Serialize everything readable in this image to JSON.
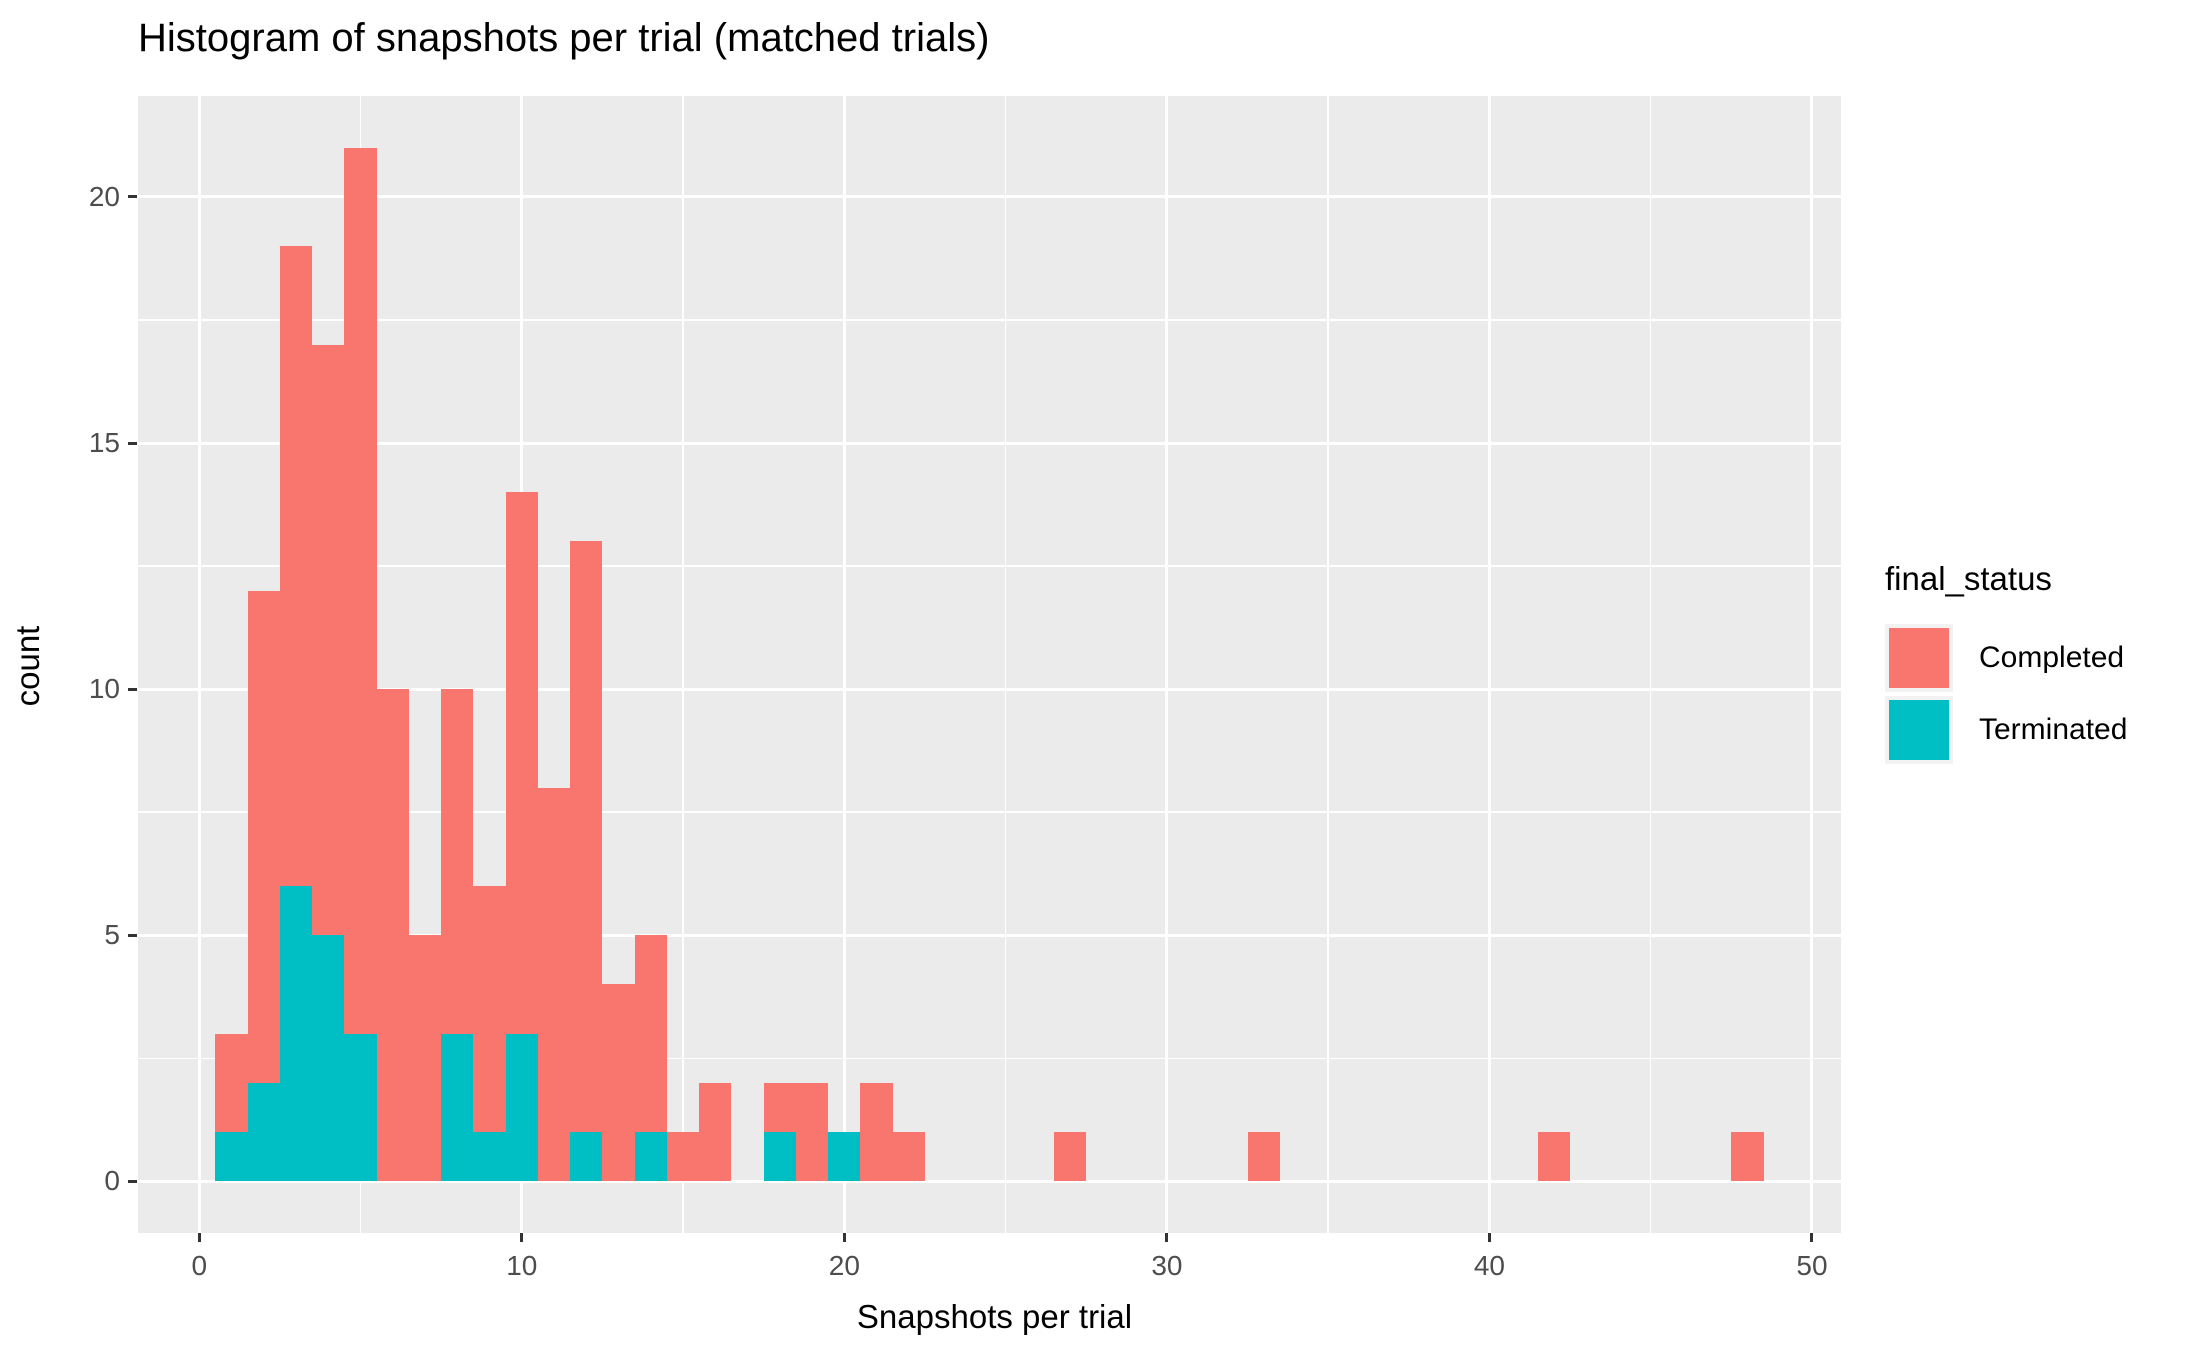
{
  "chart_data": {
    "type": "bar",
    "subtype": "stacked-histogram",
    "title": "Histogram of snapshots per trial (matched trials)",
    "xlabel": "Snapshots per trial",
    "ylabel": "count",
    "legend_title": "final_status",
    "legend_position": "right",
    "binwidth": 1,
    "xlim": [
      -1.9,
      50.9
    ],
    "ylim": [
      -1.05,
      22.05
    ],
    "x_ticks": [
      0,
      10,
      20,
      30,
      40,
      50
    ],
    "y_ticks": [
      0,
      5,
      10,
      15,
      20
    ],
    "x_minor": [
      5,
      15,
      25,
      35,
      45
    ],
    "y_minor": [
      2.5,
      7.5,
      12.5,
      17.5
    ],
    "grid": "on",
    "series": [
      {
        "name": "Completed",
        "color": "#F8766D"
      },
      {
        "name": "Terminated",
        "color": "#00BFC4"
      }
    ],
    "bins": [
      {
        "x": 1,
        "completed": 2,
        "terminated": 1
      },
      {
        "x": 2,
        "completed": 10,
        "terminated": 2
      },
      {
        "x": 3,
        "completed": 13,
        "terminated": 6
      },
      {
        "x": 4,
        "completed": 12,
        "terminated": 5
      },
      {
        "x": 5,
        "completed": 18,
        "terminated": 3
      },
      {
        "x": 6,
        "completed": 10,
        "terminated": 0
      },
      {
        "x": 7,
        "completed": 5,
        "terminated": 0
      },
      {
        "x": 8,
        "completed": 7,
        "terminated": 3
      },
      {
        "x": 9,
        "completed": 5,
        "terminated": 1
      },
      {
        "x": 10,
        "completed": 11,
        "terminated": 3
      },
      {
        "x": 11,
        "completed": 8,
        "terminated": 0
      },
      {
        "x": 12,
        "completed": 12,
        "terminated": 1
      },
      {
        "x": 13,
        "completed": 4,
        "terminated": 0
      },
      {
        "x": 14,
        "completed": 4,
        "terminated": 1
      },
      {
        "x": 15,
        "completed": 1,
        "terminated": 0
      },
      {
        "x": 16,
        "completed": 2,
        "terminated": 0
      },
      {
        "x": 18,
        "completed": 1,
        "terminated": 1
      },
      {
        "x": 19,
        "completed": 2,
        "terminated": 0
      },
      {
        "x": 20,
        "completed": 0,
        "terminated": 1
      },
      {
        "x": 21,
        "completed": 2,
        "terminated": 0
      },
      {
        "x": 22,
        "completed": 1,
        "terminated": 0
      },
      {
        "x": 27,
        "completed": 1,
        "terminated": 0
      },
      {
        "x": 33,
        "completed": 1,
        "terminated": 0
      },
      {
        "x": 42,
        "completed": 1,
        "terminated": 0
      },
      {
        "x": 48,
        "completed": 1,
        "terminated": 0
      }
    ],
    "colors": {
      "panel_background": "#EBEBEB",
      "gridline": "#FFFFFF",
      "axis_text": "#4D4D4D",
      "tick_mark": "#333333",
      "title_text": "#000000"
    }
  }
}
